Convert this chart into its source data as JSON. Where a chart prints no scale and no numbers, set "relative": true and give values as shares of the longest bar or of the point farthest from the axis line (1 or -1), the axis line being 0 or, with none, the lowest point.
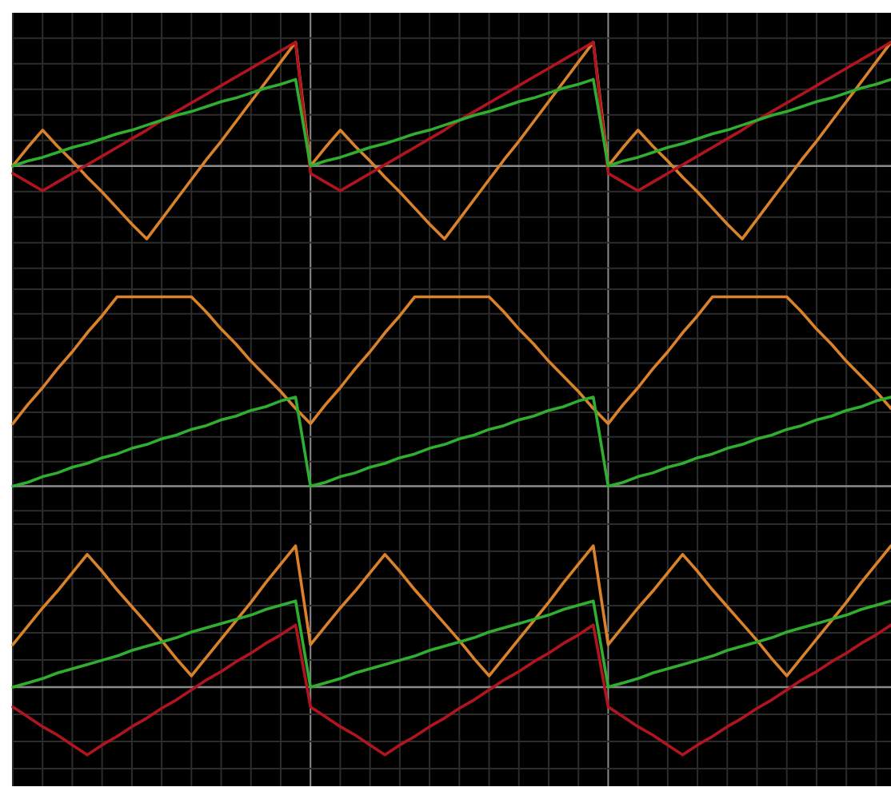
{
  "chart_data": [
    {
      "type": "line",
      "relative": true,
      "grid": true,
      "categories": [
        null,
        null,
        null,
        null,
        null,
        null,
        null,
        null,
        null,
        null,
        null,
        null,
        null,
        null,
        null,
        null,
        null,
        null,
        null,
        null,
        null,
        null,
        null,
        null,
        null,
        null,
        null,
        null,
        null,
        null,
        null,
        null,
        null,
        null,
        null,
        null,
        null,
        null,
        null,
        null,
        null,
        null,
        null,
        null,
        null,
        null,
        null,
        null,
        null,
        null,
        null,
        null,
        null,
        null,
        null,
        null,
        null,
        null,
        null,
        null
      ],
      "series": [
        {
          "color": "#d9822b",
          "values": [
            0,
            0.15,
            0.29,
            0.16,
            0.04,
            -0.09,
            -0.21,
            -0.34,
            -0.47,
            -0.59,
            -0.43,
            -0.27,
            -0.11,
            0.05,
            0.2,
            0.36,
            0.52,
            0.68,
            0.84,
            1,
            0,
            0.15,
            0.29,
            0.16,
            0.04,
            -0.09,
            -0.21,
            -0.34,
            -0.47,
            -0.59,
            -0.43,
            -0.27,
            -0.11,
            0.05,
            0.2,
            0.36,
            0.52,
            0.68,
            0.84,
            1,
            0,
            0.15,
            0.29,
            0.16,
            0.04,
            -0.09,
            -0.21,
            -0.34,
            -0.47,
            -0.59,
            -0.43,
            -0.27,
            -0.11,
            0.05,
            0.2,
            0.36,
            0.52,
            0.68,
            0.84,
            1
          ]
        },
        {
          "color": "#b0151f",
          "values": [
            -0.06,
            -0.13,
            -0.2,
            -0.13,
            -0.06,
            0.01,
            0.08,
            0.15,
            0.22,
            0.29,
            0.37,
            0.44,
            0.51,
            0.58,
            0.65,
            0.72,
            0.79,
            0.86,
            0.93,
            1,
            -0.06,
            -0.13,
            -0.2,
            -0.13,
            -0.06,
            0.01,
            0.08,
            0.15,
            0.22,
            0.29,
            0.37,
            0.44,
            0.51,
            0.58,
            0.65,
            0.72,
            0.79,
            0.86,
            0.93,
            1,
            -0.06,
            -0.13,
            -0.2,
            -0.13,
            -0.06,
            0.01,
            0.08,
            0.15,
            0.22,
            0.29,
            0.37,
            0.44,
            0.51,
            0.58,
            0.65,
            0.72,
            0.79,
            0.86,
            0.93,
            1
          ]
        },
        {
          "color": "#2fae2f",
          "values": [
            0,
            0.04,
            0.07,
            0.11,
            0.15,
            0.18,
            0.22,
            0.26,
            0.29,
            0.33,
            0.37,
            0.41,
            0.44,
            0.48,
            0.52,
            0.55,
            0.59,
            0.63,
            0.66,
            0.7,
            0,
            0.04,
            0.07,
            0.11,
            0.15,
            0.18,
            0.22,
            0.26,
            0.29,
            0.33,
            0.37,
            0.41,
            0.44,
            0.48,
            0.52,
            0.55,
            0.59,
            0.63,
            0.66,
            0.7,
            0,
            0.04,
            0.07,
            0.11,
            0.15,
            0.18,
            0.22,
            0.26,
            0.29,
            0.33,
            0.37,
            0.41,
            0.44,
            0.48,
            0.52,
            0.55,
            0.59,
            0.63,
            0.66,
            0.7
          ]
        }
      ]
    },
    {
      "type": "line",
      "relative": true,
      "grid": true,
      "categories": [
        null,
        null,
        null,
        null,
        null,
        null,
        null,
        null,
        null,
        null,
        null,
        null,
        null,
        null,
        null,
        null,
        null,
        null,
        null,
        null,
        null,
        null,
        null,
        null,
        null,
        null,
        null,
        null,
        null,
        null,
        null,
        null,
        null,
        null,
        null,
        null,
        null,
        null,
        null,
        null,
        null,
        null,
        null,
        null,
        null,
        null,
        null,
        null,
        null,
        null,
        null,
        null,
        null,
        null,
        null,
        null,
        null,
        null,
        null,
        null
      ],
      "series": [
        {
          "color": "#d9822b",
          "values": [
            0.33,
            0.43,
            0.52,
            0.62,
            0.71,
            0.81,
            0.9,
            1,
            1,
            1,
            1,
            1,
            1,
            0.92,
            0.83,
            0.75,
            0.66,
            0.58,
            0.5,
            0.41,
            0.33,
            0.43,
            0.52,
            0.62,
            0.71,
            0.81,
            0.9,
            1,
            1,
            1,
            1,
            1,
            1,
            0.92,
            0.83,
            0.75,
            0.66,
            0.58,
            0.5,
            0.41,
            0.33,
            0.43,
            0.52,
            0.62,
            0.71,
            0.81,
            0.9,
            1,
            1,
            1,
            1,
            1,
            1,
            0.92,
            0.83,
            0.75,
            0.66,
            0.58,
            0.5,
            0.41
          ]
        },
        {
          "color": "#2fae2f",
          "values": [
            0,
            0.02,
            0.05,
            0.07,
            0.1,
            0.12,
            0.15,
            0.17,
            0.2,
            0.22,
            0.25,
            0.27,
            0.3,
            0.32,
            0.35,
            0.37,
            0.4,
            0.42,
            0.45,
            0.47,
            0,
            0.02,
            0.05,
            0.07,
            0.1,
            0.12,
            0.15,
            0.17,
            0.2,
            0.22,
            0.25,
            0.27,
            0.3,
            0.32,
            0.35,
            0.37,
            0.4,
            0.42,
            0.45,
            0.47,
            0,
            0.02,
            0.05,
            0.07,
            0.1,
            0.12,
            0.15,
            0.17,
            0.2,
            0.22,
            0.25,
            0.27,
            0.3,
            0.32,
            0.35,
            0.37,
            0.4,
            0.42,
            0.45,
            0.47
          ]
        }
      ]
    },
    {
      "type": "line",
      "relative": true,
      "grid": true,
      "categories": [
        null,
        null,
        null,
        null,
        null,
        null,
        null,
        null,
        null,
        null,
        null,
        null,
        null,
        null,
        null,
        null,
        null,
        null,
        null,
        null,
        null,
        null,
        null,
        null,
        null,
        null,
        null,
        null,
        null,
        null,
        null,
        null,
        null,
        null,
        null,
        null,
        null,
        null,
        null,
        null,
        null,
        null,
        null,
        null,
        null,
        null,
        null,
        null,
        null,
        null,
        null,
        null,
        null,
        null,
        null,
        null,
        null,
        null,
        null,
        null
      ],
      "series": [
        {
          "color": "#d9822b",
          "values": [
            0.3,
            0.43,
            0.56,
            0.68,
            0.81,
            0.94,
            0.82,
            0.69,
            0.57,
            0.45,
            0.33,
            0.2,
            0.08,
            0.21,
            0.34,
            0.47,
            0.6,
            0.74,
            0.87,
            1,
            0.3,
            0.43,
            0.56,
            0.68,
            0.81,
            0.94,
            0.82,
            0.69,
            0.57,
            0.45,
            0.33,
            0.2,
            0.08,
            0.21,
            0.34,
            0.47,
            0.6,
            0.74,
            0.87,
            1,
            0.3,
            0.43,
            0.56,
            0.68,
            0.81,
            0.94,
            0.82,
            0.69,
            0.57,
            0.45,
            0.33,
            0.2,
            0.08,
            0.21,
            0.34,
            0.47,
            0.6,
            0.74,
            0.87,
            1
          ]
        },
        {
          "color": "#b0151f",
          "values": [
            -0.14,
            -0.21,
            -0.28,
            -0.34,
            -0.41,
            -0.48,
            -0.41,
            -0.35,
            -0.28,
            -0.22,
            -0.15,
            -0.09,
            -0.02,
            0.05,
            0.11,
            0.18,
            0.24,
            0.31,
            0.37,
            0.44,
            -0.14,
            -0.21,
            -0.28,
            -0.34,
            -0.41,
            -0.48,
            -0.41,
            -0.35,
            -0.28,
            -0.22,
            -0.15,
            -0.09,
            -0.02,
            0.05,
            0.11,
            0.18,
            0.24,
            0.31,
            0.37,
            0.44,
            -0.14,
            -0.21,
            -0.28,
            -0.34,
            -0.41,
            -0.48,
            -0.41,
            -0.35,
            -0.28,
            -0.22,
            -0.15,
            -0.09,
            -0.02,
            0.05,
            0.11,
            0.18,
            0.24,
            0.31,
            0.37,
            0.44
          ]
        },
        {
          "color": "#2fae2f",
          "values": [
            0,
            0.03,
            0.06,
            0.1,
            0.13,
            0.16,
            0.19,
            0.22,
            0.26,
            0.29,
            0.32,
            0.35,
            0.39,
            0.42,
            0.45,
            0.48,
            0.51,
            0.55,
            0.58,
            0.61,
            0,
            0.03,
            0.06,
            0.1,
            0.13,
            0.16,
            0.19,
            0.22,
            0.26,
            0.29,
            0.32,
            0.35,
            0.39,
            0.42,
            0.45,
            0.48,
            0.51,
            0.55,
            0.58,
            0.61,
            0,
            0.03,
            0.06,
            0.1,
            0.13,
            0.16,
            0.19,
            0.22,
            0.26,
            0.29,
            0.32,
            0.35,
            0.39,
            0.42,
            0.45,
            0.48,
            0.51,
            0.55,
            0.58,
            0.61
          ]
        }
      ]
    }
  ]
}
